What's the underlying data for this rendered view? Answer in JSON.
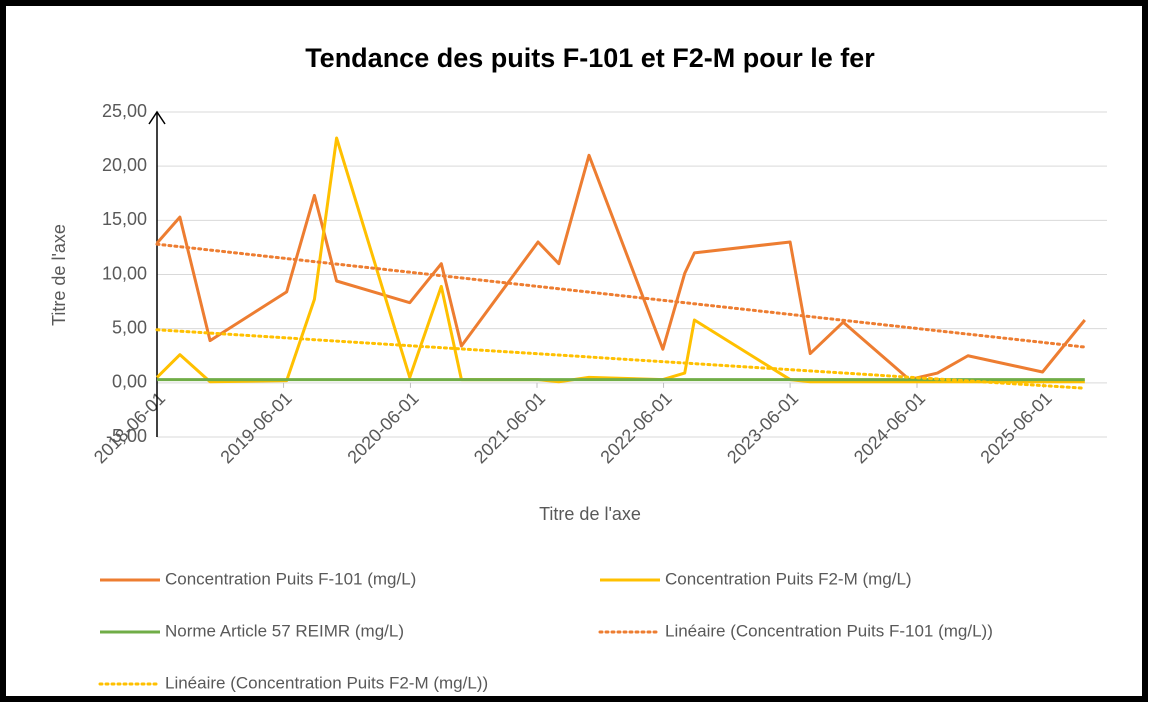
{
  "chart_data": {
    "type": "line",
    "title": "Tendance des puits F-101 et F2-M pour le fer",
    "x_label": "Titre de l'axe",
    "y_label": "Titre de l'axe",
    "xlim": [
      "2018-06-01",
      "2025-12-01"
    ],
    "xticks": [
      "2018-06-01",
      "2019-06-01",
      "2020-06-01",
      "2021-06-01",
      "2022-06-01",
      "2023-06-01",
      "2024-06-01",
      "2025-06-01"
    ],
    "ylim": [
      -5,
      25
    ],
    "yticks": [
      {
        "value": -5,
        "label": "-5,00"
      },
      {
        "value": 0,
        "label": "0,00"
      },
      {
        "value": 5,
        "label": "5,00"
      },
      {
        "value": 10,
        "label": "10,00"
      },
      {
        "value": 15,
        "label": "15,00"
      },
      {
        "value": 20,
        "label": "20,00"
      },
      {
        "value": 25,
        "label": "25,00"
      }
    ],
    "grid": true,
    "legend": "bottom",
    "series": [
      {
        "name": "Concentration Puits F-101 (mg/L)",
        "color": "#ED7D31",
        "dash": "solid",
        "x": [
          "2018-06-01",
          "2018-08-06",
          "2018-11-01",
          "2019-06-10",
          "2019-08-29",
          "2019-11-01",
          "2020-05-30",
          "2020-08-29",
          "2020-10-26",
          "2021-06-04",
          "2021-08-03",
          "2021-10-29",
          "2022-05-30",
          "2022-08-01",
          "2022-08-29",
          "2023-06-01",
          "2023-07-29",
          "2023-11-01",
          "2024-05-10",
          "2024-07-30",
          "2024-10-26",
          "2025-05-29",
          "2025-09-28"
        ],
        "values": [
          12.9,
          15.3,
          3.9,
          8.4,
          17.3,
          9.4,
          7.4,
          11.0,
          3.4,
          13.0,
          11.0,
          21.0,
          3.1,
          10.1,
          12.0,
          13.0,
          2.7,
          5.6,
          0.3,
          0.9,
          2.5,
          1.0,
          5.8
        ]
      },
      {
        "name": "Concentration Puits F2-M (mg/L)",
        "color": "#FFC000",
        "dash": "solid",
        "x": [
          "2018-06-01",
          "2018-08-06",
          "2018-11-01",
          "2019-06-10",
          "2019-08-29",
          "2019-11-01",
          "2020-05-30",
          "2020-08-29",
          "2020-10-26",
          "2021-06-04",
          "2021-08-03",
          "2021-10-29",
          "2022-05-30",
          "2022-08-01",
          "2022-08-29",
          "2023-06-01",
          "2023-07-29",
          "2023-11-01",
          "2024-05-10",
          "2024-07-30",
          "2024-10-26",
          "2025-05-29",
          "2025-09-28"
        ],
        "values": [
          0.5,
          2.6,
          0.1,
          0.2,
          7.7,
          22.6,
          0.5,
          8.9,
          0.3,
          0.3,
          0.1,
          0.5,
          0.3,
          0.9,
          5.8,
          0.3,
          0.1,
          0.1,
          0.1,
          0.1,
          0.1,
          0.1,
          0.1
        ]
      },
      {
        "name": "Norme Article 57 REIMR (mg/L)",
        "color": "#70AD47",
        "dash": "solid",
        "x": [
          "2018-06-01",
          "2025-09-28"
        ],
        "values": [
          0.3,
          0.3
        ]
      },
      {
        "name": "Linéaire (Concentration Puits F-101 (mg/L))",
        "color": "#ED7D31",
        "dash": "dotted",
        "x": [
          "2018-06-01",
          "2025-09-28"
        ],
        "values": [
          12.8,
          3.3
        ]
      },
      {
        "name": "Linéaire (Concentration Puits F2-M (mg/L))",
        "color": "#FFC000",
        "dash": "dotted",
        "x": [
          "2018-06-01",
          "2025-09-28"
        ],
        "values": [
          4.9,
          -0.5
        ]
      }
    ]
  }
}
